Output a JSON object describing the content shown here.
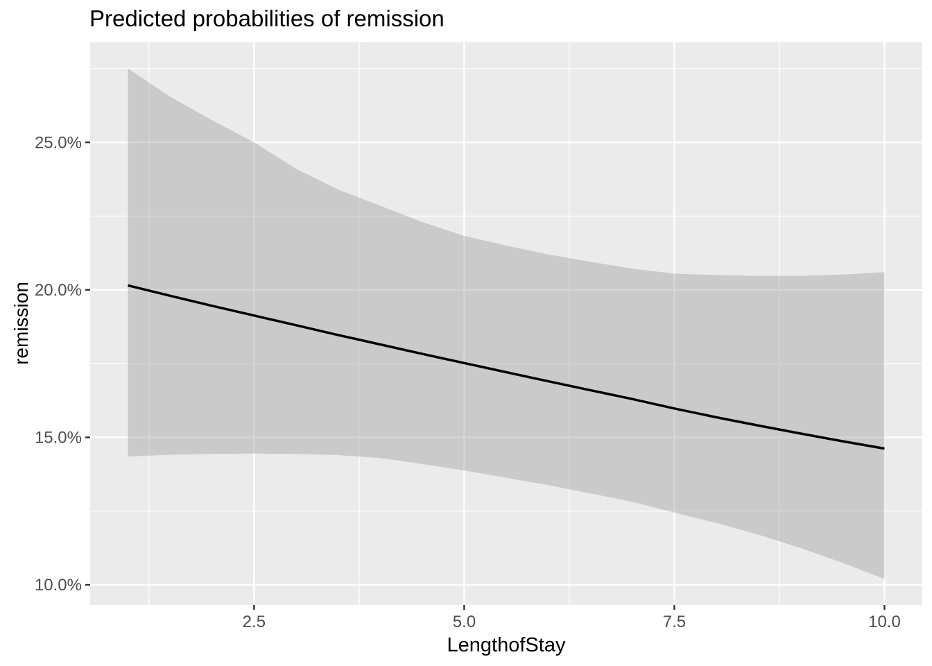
{
  "chart_data": {
    "type": "line",
    "title": "Predicted probabilities of remission",
    "xlabel": "LengthofStay",
    "ylabel": "remission",
    "x_domain": [
      0.55,
      10.45
    ],
    "y_domain_percent": [
      9.32,
      28.39
    ],
    "x_ticks": [
      {
        "value": 2.5,
        "label": "2.5"
      },
      {
        "value": 5.0,
        "label": "5.0"
      },
      {
        "value": 7.5,
        "label": "7.5"
      },
      {
        "value": 10.0,
        "label": "10.0"
      }
    ],
    "y_ticks": [
      {
        "value": 10.0,
        "label": "10.0%"
      },
      {
        "value": 15.0,
        "label": "15.0%"
      },
      {
        "value": 20.0,
        "label": "20.0%"
      },
      {
        "value": 25.0,
        "label": "25.0%"
      }
    ],
    "x_minor_gridlines": [
      1.25,
      3.75,
      6.25,
      8.75
    ],
    "y_minor_gridlines": [
      12.5,
      17.5,
      22.5,
      27.5
    ],
    "x": [
      1,
      1.5,
      2,
      2.5,
      3,
      3.5,
      4,
      4.5,
      5,
      5.5,
      6,
      6.5,
      7,
      7.5,
      8,
      8.5,
      9,
      9.5,
      10
    ],
    "series": [
      {
        "name": "predicted-probability-fit",
        "values_percent": [
          20.15,
          19.8,
          19.46,
          19.13,
          18.8,
          18.47,
          18.15,
          17.83,
          17.52,
          17.21,
          16.9,
          16.6,
          16.3,
          15.98,
          15.68,
          15.4,
          15.13,
          14.87,
          14.62
        ],
        "color": "#000000",
        "width": 3.5
      }
    ],
    "ribbon": {
      "name": "confidence-interval",
      "upper_percent": [
        27.5,
        26.55,
        25.75,
        25.0,
        24.1,
        23.4,
        22.85,
        22.3,
        21.83,
        21.5,
        21.2,
        20.95,
        20.72,
        20.55,
        20.5,
        20.47,
        20.47,
        20.52,
        20.6
      ],
      "lower_percent": [
        14.35,
        14.41,
        14.44,
        14.45,
        14.44,
        14.4,
        14.3,
        14.1,
        13.88,
        13.63,
        13.38,
        13.1,
        12.82,
        12.45,
        12.1,
        11.7,
        11.25,
        10.75,
        10.2
      ],
      "fill": "#999999",
      "fill_opacity": 0.4
    },
    "colors": {
      "panel_background": "#EBEBEB",
      "gridline": "#FFFFFF",
      "tick_label": "#4D4D4D",
      "tick_mark": "#333333",
      "title": "#000000"
    },
    "grid": "major+minor",
    "legend": "none"
  }
}
